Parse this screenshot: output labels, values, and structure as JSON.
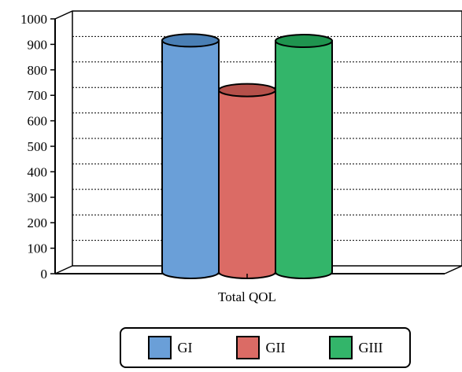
{
  "chart_data": {
    "type": "bar",
    "style": "3d-cylinder",
    "categories": [
      "Total QOL"
    ],
    "series": [
      {
        "name": "GI",
        "values": [
          900
        ],
        "color": "#6a9fd8",
        "top_color": "#4a7fb5"
      },
      {
        "name": "GII",
        "values": [
          705
        ],
        "color": "#db6b65",
        "top_color": "#b5504a"
      },
      {
        "name": "GIII",
        "values": [
          898
        ],
        "color": "#33b56a",
        "top_color": "#1f944f"
      }
    ],
    "yticks": [
      "0",
      "100",
      "200",
      "300",
      "400",
      "500",
      "600",
      "700",
      "800",
      "900",
      "1000"
    ],
    "ylim": [
      0,
      1000
    ],
    "grid": true,
    "legend_position": "bottom"
  }
}
